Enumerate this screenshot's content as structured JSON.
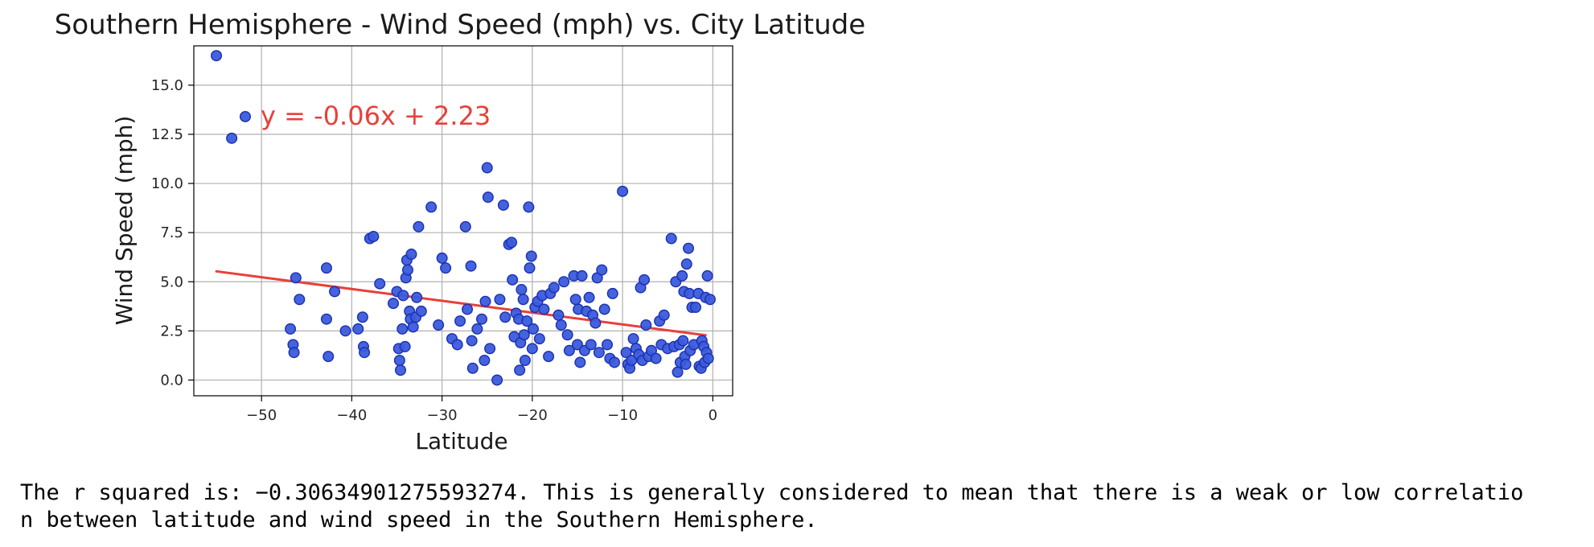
{
  "chart_data": {
    "type": "scatter",
    "title": "Southern Hemisphere - Wind Speed (mph) vs. City Latitude",
    "xlabel": "Latitude",
    "ylabel": "Wind Speed (mph)",
    "xlim": [
      -57.5,
      2.2
    ],
    "ylim": [
      -0.8,
      17.0
    ],
    "xticks": [
      -50,
      -40,
      -30,
      -20,
      -10,
      0
    ],
    "xtick_labels": [
      "−50",
      "−40",
      "−30",
      "−20",
      "−10",
      "0"
    ],
    "yticks": [
      0.0,
      2.5,
      5.0,
      7.5,
      10.0,
      12.5,
      15.0
    ],
    "ytick_labels": [
      "0.0",
      "2.5",
      "5.0",
      "7.5",
      "10.0",
      "12.5",
      "15.0"
    ],
    "grid": true,
    "colors": {
      "marker_fill": "#3b5bdb",
      "marker_edge": "#1a2fb0",
      "regression": "#e8403a",
      "equation": "#e8403a"
    },
    "regression": {
      "equation": "y = -0.06x + 2.23",
      "slope": -0.06,
      "intercept": 2.23,
      "x_range": [
        -55.0,
        -0.8
      ],
      "annotation_at": [
        -50.1,
        13.0
      ]
    },
    "series": [
      {
        "points": [
          [
            -55.0,
            16.5
          ],
          [
            -53.3,
            12.3
          ],
          [
            -51.8,
            13.4
          ],
          [
            -46.8,
            2.6
          ],
          [
            -46.5,
            1.8
          ],
          [
            -46.4,
            1.4
          ],
          [
            -46.2,
            5.2
          ],
          [
            -45.8,
            4.1
          ],
          [
            -42.8,
            5.7
          ],
          [
            -42.8,
            3.1
          ],
          [
            -42.6,
            1.2
          ],
          [
            -41.9,
            4.5
          ],
          [
            -40.7,
            2.5
          ],
          [
            -39.3,
            2.6
          ],
          [
            -38.8,
            3.2
          ],
          [
            -38.7,
            1.7
          ],
          [
            -38.6,
            1.4
          ],
          [
            -38.0,
            7.2
          ],
          [
            -37.6,
            7.3
          ],
          [
            -36.9,
            4.9
          ],
          [
            -35.4,
            3.9
          ],
          [
            -35.0,
            4.5
          ],
          [
            -34.8,
            1.6
          ],
          [
            -34.7,
            1.0
          ],
          [
            -34.6,
            0.5
          ],
          [
            -34.4,
            2.6
          ],
          [
            -34.3,
            4.3
          ],
          [
            -34.1,
            1.7
          ],
          [
            -34.0,
            5.2
          ],
          [
            -33.9,
            6.1
          ],
          [
            -33.8,
            5.6
          ],
          [
            -33.6,
            3.5
          ],
          [
            -33.5,
            3.1
          ],
          [
            -33.4,
            6.4
          ],
          [
            -33.2,
            2.7
          ],
          [
            -32.9,
            3.2
          ],
          [
            -32.8,
            4.2
          ],
          [
            -32.6,
            7.8
          ],
          [
            -32.3,
            3.5
          ],
          [
            -31.2,
            8.8
          ],
          [
            -30.4,
            2.8
          ],
          [
            -30.0,
            6.2
          ],
          [
            -29.6,
            5.7
          ],
          [
            -28.9,
            2.1
          ],
          [
            -28.3,
            1.8
          ],
          [
            -28.0,
            3.0
          ],
          [
            -27.4,
            7.8
          ],
          [
            -27.2,
            3.6
          ],
          [
            -26.8,
            5.8
          ],
          [
            -26.7,
            2.0
          ],
          [
            -26.6,
            0.6
          ],
          [
            -26.1,
            2.6
          ],
          [
            -25.6,
            3.1
          ],
          [
            -25.3,
            1.0
          ],
          [
            -25.2,
            4.0
          ],
          [
            -25.0,
            10.8
          ],
          [
            -24.9,
            9.3
          ],
          [
            -24.7,
            1.6
          ],
          [
            -23.9,
            0.0
          ],
          [
            -23.6,
            4.1
          ],
          [
            -23.2,
            8.9
          ],
          [
            -23.0,
            3.2
          ],
          [
            -22.6,
            6.9
          ],
          [
            -22.3,
            7.0
          ],
          [
            -22.2,
            5.1
          ],
          [
            -22.0,
            2.2
          ],
          [
            -21.8,
            3.4
          ],
          [
            -21.5,
            3.1
          ],
          [
            -21.4,
            0.5
          ],
          [
            -21.3,
            1.9
          ],
          [
            -21.2,
            4.6
          ],
          [
            -21.0,
            4.1
          ],
          [
            -20.9,
            2.3
          ],
          [
            -20.8,
            1.0
          ],
          [
            -20.6,
            3.0
          ],
          [
            -20.4,
            8.8
          ],
          [
            -20.3,
            5.7
          ],
          [
            -20.1,
            6.3
          ],
          [
            -20.0,
            1.6
          ],
          [
            -19.9,
            2.6
          ],
          [
            -19.7,
            3.7
          ],
          [
            -19.4,
            4.0
          ],
          [
            -19.2,
            2.1
          ],
          [
            -18.9,
            4.3
          ],
          [
            -18.7,
            3.6
          ],
          [
            -18.2,
            1.2
          ],
          [
            -18.0,
            4.4
          ],
          [
            -17.6,
            4.7
          ],
          [
            -17.1,
            3.3
          ],
          [
            -16.8,
            2.8
          ],
          [
            -16.5,
            5.0
          ],
          [
            -16.1,
            2.3
          ],
          [
            -15.9,
            1.5
          ],
          [
            -15.4,
            5.3
          ],
          [
            -15.2,
            4.1
          ],
          [
            -15.0,
            1.8
          ],
          [
            -14.9,
            3.6
          ],
          [
            -14.7,
            0.9
          ],
          [
            -14.5,
            5.3
          ],
          [
            -14.2,
            1.5
          ],
          [
            -14.0,
            3.5
          ],
          [
            -13.7,
            4.2
          ],
          [
            -13.5,
            1.8
          ],
          [
            -13.3,
            3.3
          ],
          [
            -13.0,
            2.9
          ],
          [
            -12.8,
            5.2
          ],
          [
            -12.6,
            1.4
          ],
          [
            -12.3,
            5.6
          ],
          [
            -12.0,
            3.6
          ],
          [
            -11.7,
            1.8
          ],
          [
            -11.4,
            1.1
          ],
          [
            -11.1,
            4.4
          ],
          [
            -10.9,
            0.9
          ],
          [
            -10.0,
            9.6
          ],
          [
            -9.6,
            1.4
          ],
          [
            -9.4,
            0.8
          ],
          [
            -9.2,
            0.6
          ],
          [
            -9.0,
            1.0
          ],
          [
            -8.8,
            2.1
          ],
          [
            -8.5,
            1.6
          ],
          [
            -8.2,
            1.3
          ],
          [
            -8.0,
            4.7
          ],
          [
            -7.8,
            1.0
          ],
          [
            -7.6,
            5.1
          ],
          [
            -7.4,
            2.8
          ],
          [
            -7.1,
            1.2
          ],
          [
            -6.8,
            1.5
          ],
          [
            -6.3,
            1.1
          ],
          [
            -5.9,
            3.0
          ],
          [
            -5.7,
            1.8
          ],
          [
            -5.4,
            3.3
          ],
          [
            -5.0,
            1.6
          ],
          [
            -4.6,
            7.2
          ],
          [
            -4.3,
            1.7
          ],
          [
            -4.1,
            5.0
          ],
          [
            -3.9,
            0.4
          ],
          [
            -3.7,
            1.8
          ],
          [
            -3.6,
            0.9
          ],
          [
            -3.4,
            5.3
          ],
          [
            -3.3,
            2.0
          ],
          [
            -3.2,
            4.5
          ],
          [
            -3.1,
            1.2
          ],
          [
            -3.0,
            0.8
          ],
          [
            -2.9,
            5.9
          ],
          [
            -2.7,
            6.7
          ],
          [
            -2.6,
            4.4
          ],
          [
            -2.5,
            1.5
          ],
          [
            -2.3,
            3.7
          ],
          [
            -2.1,
            1.8
          ],
          [
            -1.9,
            3.7
          ],
          [
            -1.6,
            4.4
          ],
          [
            -1.5,
            0.7
          ],
          [
            -1.3,
            0.6
          ],
          [
            -1.2,
            2.0
          ],
          [
            -1.0,
            1.7
          ],
          [
            -0.9,
            0.9
          ],
          [
            -0.8,
            4.2
          ],
          [
            -0.7,
            1.4
          ],
          [
            -0.6,
            5.3
          ],
          [
            -0.5,
            1.1
          ],
          [
            -0.3,
            4.1
          ]
        ]
      }
    ]
  },
  "console_output": "The r squared is: −0.30634901275593274. This is generally considered to mean that there is a weak or low correlatio\nn between latitude and wind speed in the Southern Hemisphere."
}
